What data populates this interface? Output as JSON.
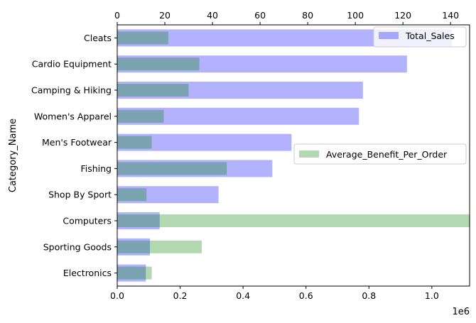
{
  "chart_data": {
    "type": "bar",
    "orientation": "horizontal",
    "ylabel": "Category_Name",
    "categories": [
      "Cleats",
      "Cardio Equipment",
      "Camping & Hiking",
      "Women's Apparel",
      "Men's Footwear",
      "Fishing",
      "Shop By Sport",
      "Computers",
      "Sporting Goods",
      "Electronics"
    ],
    "bottom_axis": {
      "ticks": [
        "0.0",
        "0.2",
        "0.4",
        "0.6",
        "0.8",
        "1.0"
      ],
      "tick_values": [
        0,
        0.2,
        0.4,
        0.6,
        0.8,
        1.0
      ],
      "multiplier": "1e6",
      "range": [
        0,
        1.12
      ]
    },
    "top_axis": {
      "ticks": [
        "0",
        "20",
        "40",
        "60",
        "80",
        "100",
        "120",
        "140"
      ],
      "tick_values": [
        0,
        20,
        40,
        60,
        80,
        100,
        120,
        140
      ],
      "range": [
        0,
        148
      ]
    },
    "series": [
      {
        "name": "Total_Sales",
        "axis": "bottom",
        "color": "#0000ff",
        "opacity": 0.3,
        "values": [
          1063000,
          921000,
          781000,
          768000,
          554000,
          493000,
          322000,
          135000,
          104000,
          91000
        ]
      },
      {
        "name": "Average_Benefit_Per_Order",
        "axis": "top",
        "color": "#008000",
        "opacity": 0.3,
        "values": [
          21.5,
          34.5,
          30.0,
          19.5,
          14.5,
          46.0,
          12.3,
          148.0,
          35.5,
          14.5
        ]
      }
    ],
    "legends": [
      {
        "series": "Total_Sales",
        "placement": "upper right"
      },
      {
        "series": "Average_Benefit_Per_Order",
        "placement": "center right"
      }
    ]
  }
}
